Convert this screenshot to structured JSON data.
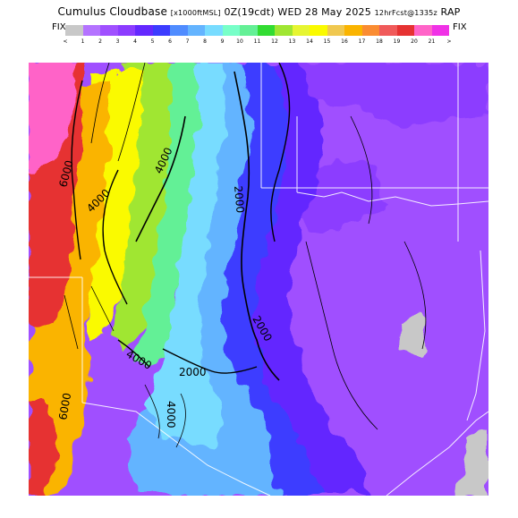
{
  "title": {
    "lead": "Cumulus Cloudbase",
    "units": "[x1000ftMSL]",
    "valid": "0Z(19cdt) WED 28 May 2025",
    "forecast": "12hrFcst@1335z",
    "model": "RAP"
  },
  "colorbar": {
    "fix_left": "FIX",
    "fix_right": "FIX",
    "colors": [
      "#c8c8c8",
      "#b473ff",
      "#a050ff",
      "#8c3cff",
      "#6428ff",
      "#3c3cff",
      "#508cff",
      "#64b4ff",
      "#78dcff",
      "#78ffc8",
      "#64f096",
      "#32dc32",
      "#a0e632",
      "#e6f532",
      "#fafa00",
      "#f0c850",
      "#fab400",
      "#fa8c32",
      "#f05a5a",
      "#e63232",
      "#ff64c8",
      "#f032e6"
    ],
    "labels": [
      "<",
      "1",
      "2",
      "3",
      "4",
      "5",
      "6",
      "7",
      "8",
      "9",
      "10",
      "11",
      "12",
      "13",
      "14",
      "15",
      "16",
      "17",
      "18",
      "19",
      "20",
      "21",
      ">"
    ]
  },
  "map": {
    "contour_labels": [
      {
        "text": "6000",
        "color": "#000000"
      },
      {
        "text": "4000",
        "color": "#000000"
      },
      {
        "text": "4000",
        "color": "#000000"
      },
      {
        "text": "2000",
        "color": "#000000"
      },
      {
        "text": "2000",
        "color": "#000000"
      },
      {
        "text": "4000",
        "color": "#000000"
      },
      {
        "text": "2000",
        "color": "#000000"
      },
      {
        "text": "6000",
        "color": "#000000"
      },
      {
        "text": "4000",
        "color": "#000000"
      }
    ],
    "colors": {
      "purple_light": "#a050ff",
      "purple": "#8c3cff",
      "indigo": "#6428ff",
      "blue": "#3c3cff",
      "sky": "#64b4ff",
      "cyan": "#78dcff",
      "green": "#64f096",
      "lime": "#a0e632",
      "yellow": "#fafa00",
      "orange": "#fab400",
      "red": "#e63232",
      "pink": "#ff64c8",
      "gray": "#c8c8c8",
      "border": "#ffffff"
    }
  }
}
